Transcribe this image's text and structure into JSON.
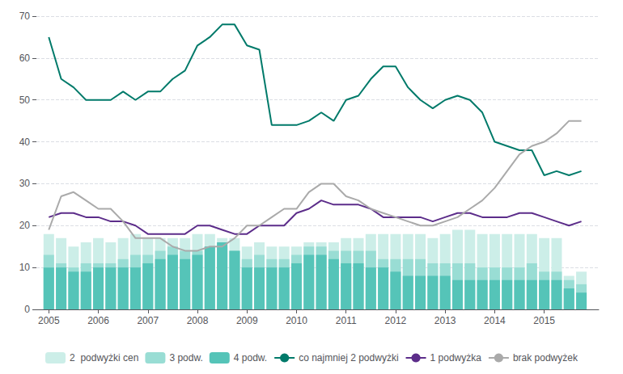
{
  "chart_data": {
    "type": "bar",
    "x": [
      2005.0,
      2005.25,
      2005.5,
      2005.75,
      2006.0,
      2006.25,
      2006.5,
      2006.75,
      2007.0,
      2007.25,
      2007.5,
      2007.75,
      2008.0,
      2008.25,
      2008.5,
      2008.75,
      2009.0,
      2009.25,
      2009.5,
      2009.75,
      2010.0,
      2010.25,
      2010.5,
      2010.75,
      2011.0,
      2011.25,
      2011.5,
      2011.75,
      2012.0,
      2012.25,
      2012.5,
      2012.75,
      2013.0,
      2013.25,
      2013.5,
      2013.75,
      2014.0,
      2014.25,
      2014.5,
      2014.75,
      2015.0,
      2015.25,
      2015.5,
      2015.75
    ],
    "series": [
      {
        "name": "2  podwyżki cen",
        "type": "bar",
        "color": "#cceee8",
        "values": [
          18,
          17,
          15,
          16,
          17,
          16,
          17,
          18,
          17,
          17,
          17,
          17,
          18,
          18,
          17,
          17,
          15,
          16,
          15,
          15,
          15,
          16,
          16,
          16,
          17,
          17,
          18,
          18,
          18,
          18,
          18,
          17,
          18,
          19,
          19,
          18,
          18,
          18,
          18,
          18,
          17,
          17,
          8,
          9
        ]
      },
      {
        "name": "3 podw.",
        "type": "bar",
        "color": "#99ddd4",
        "values": [
          13,
          11,
          10,
          11,
          11,
          11,
          12,
          13,
          13,
          14,
          15,
          14,
          14,
          15,
          15,
          14,
          12,
          13,
          12,
          12,
          13,
          15,
          15,
          14,
          14,
          14,
          14,
          12,
          12,
          12,
          12,
          11,
          11,
          11,
          11,
          10,
          10,
          10,
          10,
          11,
          9,
          9,
          7,
          6
        ]
      },
      {
        "name": "4 podw.",
        "type": "bar",
        "color": "#55c4b8",
        "values": [
          10,
          10,
          9,
          9,
          10,
          10,
          10,
          10,
          11,
          12,
          13,
          12,
          13,
          15,
          16,
          14,
          10,
          10,
          10,
          10,
          11,
          13,
          13,
          12,
          11,
          11,
          10,
          10,
          9,
          8,
          8,
          8,
          8,
          7,
          7,
          7,
          7,
          7,
          7,
          7,
          7,
          7,
          5,
          4
        ]
      },
      {
        "name": "co najmniej 2 podwyżki",
        "type": "line",
        "color": "#007a6a",
        "values": [
          65,
          55,
          53,
          50,
          50,
          50,
          52,
          50,
          52,
          52,
          55,
          57,
          63,
          65,
          68,
          68,
          63,
          62,
          44,
          44,
          44,
          45,
          47,
          45,
          50,
          51,
          55,
          58,
          58,
          53,
          50,
          48,
          50,
          51,
          50,
          47,
          40,
          39,
          38,
          38,
          32,
          33,
          32,
          33
        ]
      },
      {
        "name": "1 podwyżka",
        "type": "line",
        "color": "#5c2d8a",
        "values": [
          22,
          23,
          23,
          22,
          22,
          21,
          21,
          20,
          18,
          18,
          18,
          18,
          20,
          20,
          19,
          18,
          18,
          20,
          20,
          20,
          23,
          24,
          26,
          25,
          25,
          25,
          24,
          22,
          22,
          22,
          22,
          21,
          22,
          23,
          23,
          22,
          22,
          22,
          23,
          23,
          22,
          21,
          20,
          21
        ]
      },
      {
        "name": "brak podwyżek",
        "type": "line",
        "color": "#aaaaaa",
        "values": [
          19,
          27,
          28,
          26,
          24,
          24,
          21,
          17,
          17,
          17,
          15,
          14,
          14,
          15,
          15,
          17,
          20,
          20,
          22,
          24,
          24,
          28,
          30,
          30,
          27,
          26,
          24,
          23,
          22,
          21,
          20,
          20,
          21,
          22,
          24,
          26,
          29,
          33,
          37,
          39,
          40,
          42,
          45,
          45
        ]
      }
    ],
    "stacked": true,
    "xlim": [
      2004.75,
      2016.1
    ],
    "xticks": [
      2005,
      2006,
      2007,
      2008,
      2009,
      2010,
      2011,
      2012,
      2013,
      2014,
      2015
    ],
    "ylim": [
      0,
      70
    ],
    "yticks": [
      0,
      10,
      20,
      30,
      40,
      50,
      60,
      70
    ],
    "grid": true,
    "legend": "bottom"
  }
}
